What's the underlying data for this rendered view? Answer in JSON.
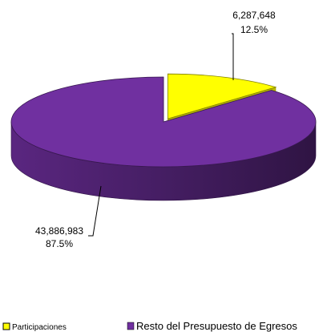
{
  "chart_data": {
    "type": "pie",
    "style": "3d",
    "title": "",
    "slices": [
      {
        "name": "Participaciones",
        "value": 6287648,
        "value_label": "6,287,648",
        "percent_label": "12.5%",
        "color": "#ffff00",
        "exploded": true
      },
      {
        "name": "Resto del Presupuesto de Egresos",
        "value": 43886983,
        "value_label": "43,886,983",
        "percent_label": "87.5%",
        "color": "#7030a0",
        "exploded": false
      }
    ],
    "legend": {
      "placement": "bottom",
      "entries": [
        "Participaciones",
        "Resto del Presupuesto de Egresos"
      ]
    }
  }
}
